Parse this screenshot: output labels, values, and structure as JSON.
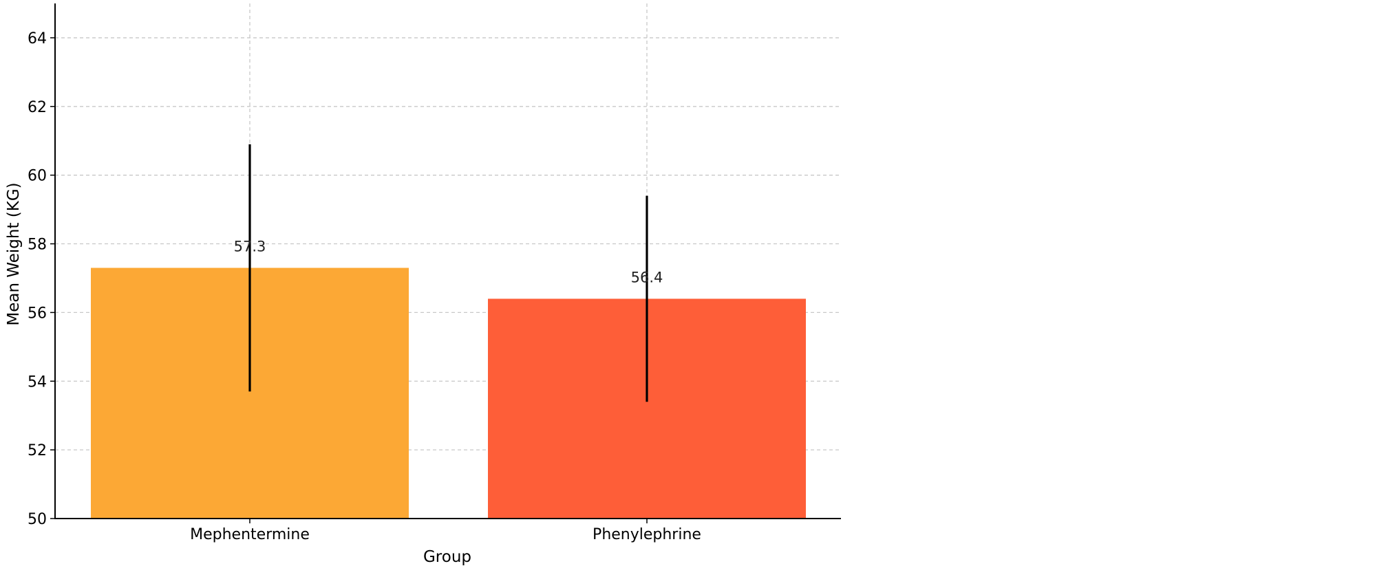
{
  "chart_data": {
    "type": "bar",
    "title": "",
    "xlabel": "Group",
    "ylabel": "Mean Weight (KG)",
    "ylim": [
      50,
      65
    ],
    "yticks": [
      50,
      52,
      54,
      56,
      58,
      60,
      62,
      64
    ],
    "grid": true,
    "categories": [
      "Mephentermine",
      "Phenylephrine"
    ],
    "values": [
      57.3,
      56.4
    ],
    "error": [
      3.6,
      3.0
    ],
    "value_labels": [
      "57.3",
      "56.4"
    ],
    "colors": [
      "#fca835",
      "#fe5e38"
    ]
  }
}
